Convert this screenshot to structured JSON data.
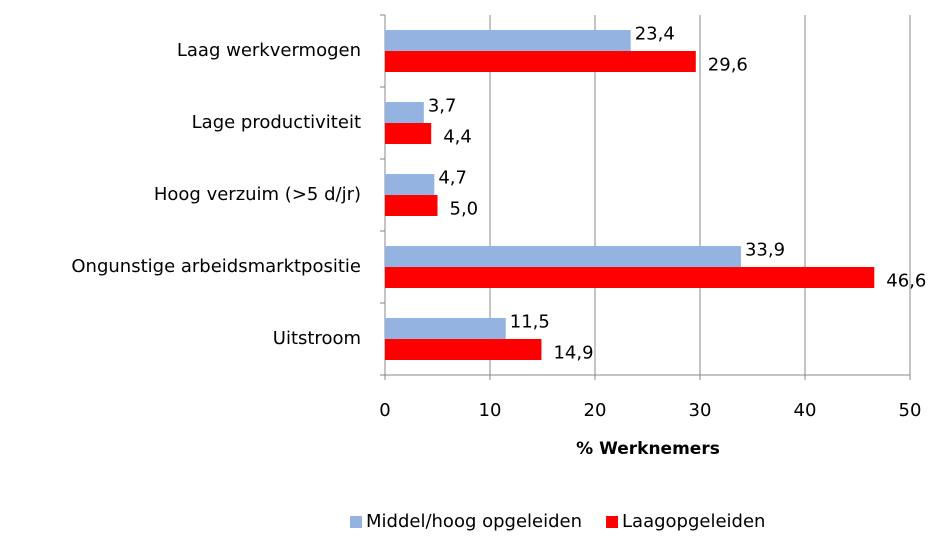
{
  "chart_data": {
    "type": "bar",
    "orientation": "horizontal",
    "xlabel": "% Werknemers",
    "categories": [
      "Laag werkvermogen",
      "Lage productiviteit",
      "Hoog verzuim (>5 d/jr)",
      "Ongunstige arbeidsmarktpositie",
      "Uitstroom"
    ],
    "series": [
      {
        "name": "Middel/hoog opgeleiden",
        "color": "#95b3e0",
        "values": [
          23.4,
          3.7,
          4.7,
          33.9,
          11.5
        ],
        "value_labels": [
          "23,4",
          "3,7",
          "4,7",
          "33,9",
          "11,5"
        ]
      },
      {
        "name": "Laagopgeleiden",
        "color": "#ff0000",
        "values": [
          29.6,
          4.4,
          5.0,
          46.6,
          14.9
        ],
        "value_labels": [
          "29,6",
          "4,4",
          "5,0",
          "46,6",
          "14,9"
        ]
      }
    ],
    "xlim": [
      0,
      50
    ],
    "xticks": [
      0,
      10,
      20,
      30,
      40,
      50
    ],
    "grid": true,
    "legend": "bottom"
  }
}
